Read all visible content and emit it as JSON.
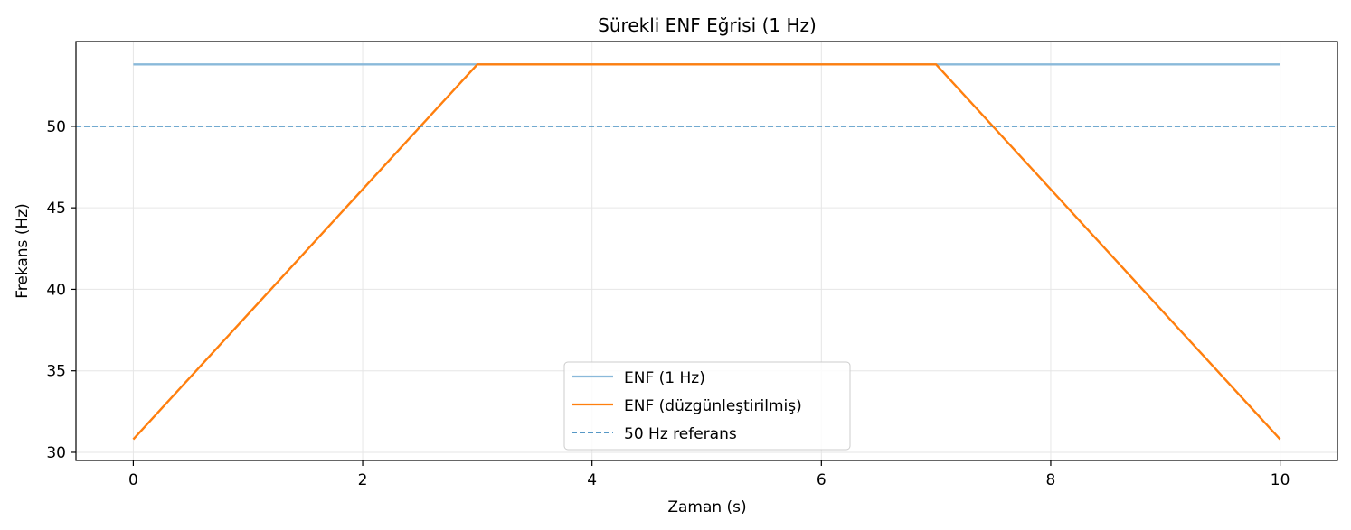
{
  "chart_data": {
    "type": "line",
    "title": "Sürekli ENF Eğrisi (1 Hz)",
    "xlabel": "Zaman (s)",
    "ylabel": "Frekans (Hz)",
    "xlim": [
      -0.5,
      10.5
    ],
    "ylim": [
      29.5,
      55.2
    ],
    "xticks": [
      0,
      2,
      4,
      6,
      8,
      10
    ],
    "yticks": [
      30,
      35,
      40,
      45,
      50
    ],
    "grid": true,
    "legend_position": "bottom-center",
    "series": [
      {
        "name": "ENF (1 Hz)",
        "style": "solid",
        "color": "#8ab9da",
        "x": [
          0,
          1,
          2,
          3,
          4,
          5,
          6,
          7,
          8,
          9,
          10
        ],
        "y": [
          53.8,
          53.8,
          53.8,
          53.8,
          53.8,
          53.8,
          53.8,
          53.8,
          53.8,
          53.8,
          53.8
        ]
      },
      {
        "name": "ENF (düzgünleştirilmiş)",
        "style": "solid",
        "color": "#ff7f0e",
        "x": [
          0,
          3,
          7,
          10
        ],
        "y": [
          30.8,
          53.8,
          53.8,
          30.8
        ]
      },
      {
        "name": "50 Hz referans",
        "style": "dashed",
        "color": "#1f77b4",
        "x": [
          -0.5,
          10.5
        ],
        "y": [
          50,
          50
        ]
      }
    ]
  }
}
